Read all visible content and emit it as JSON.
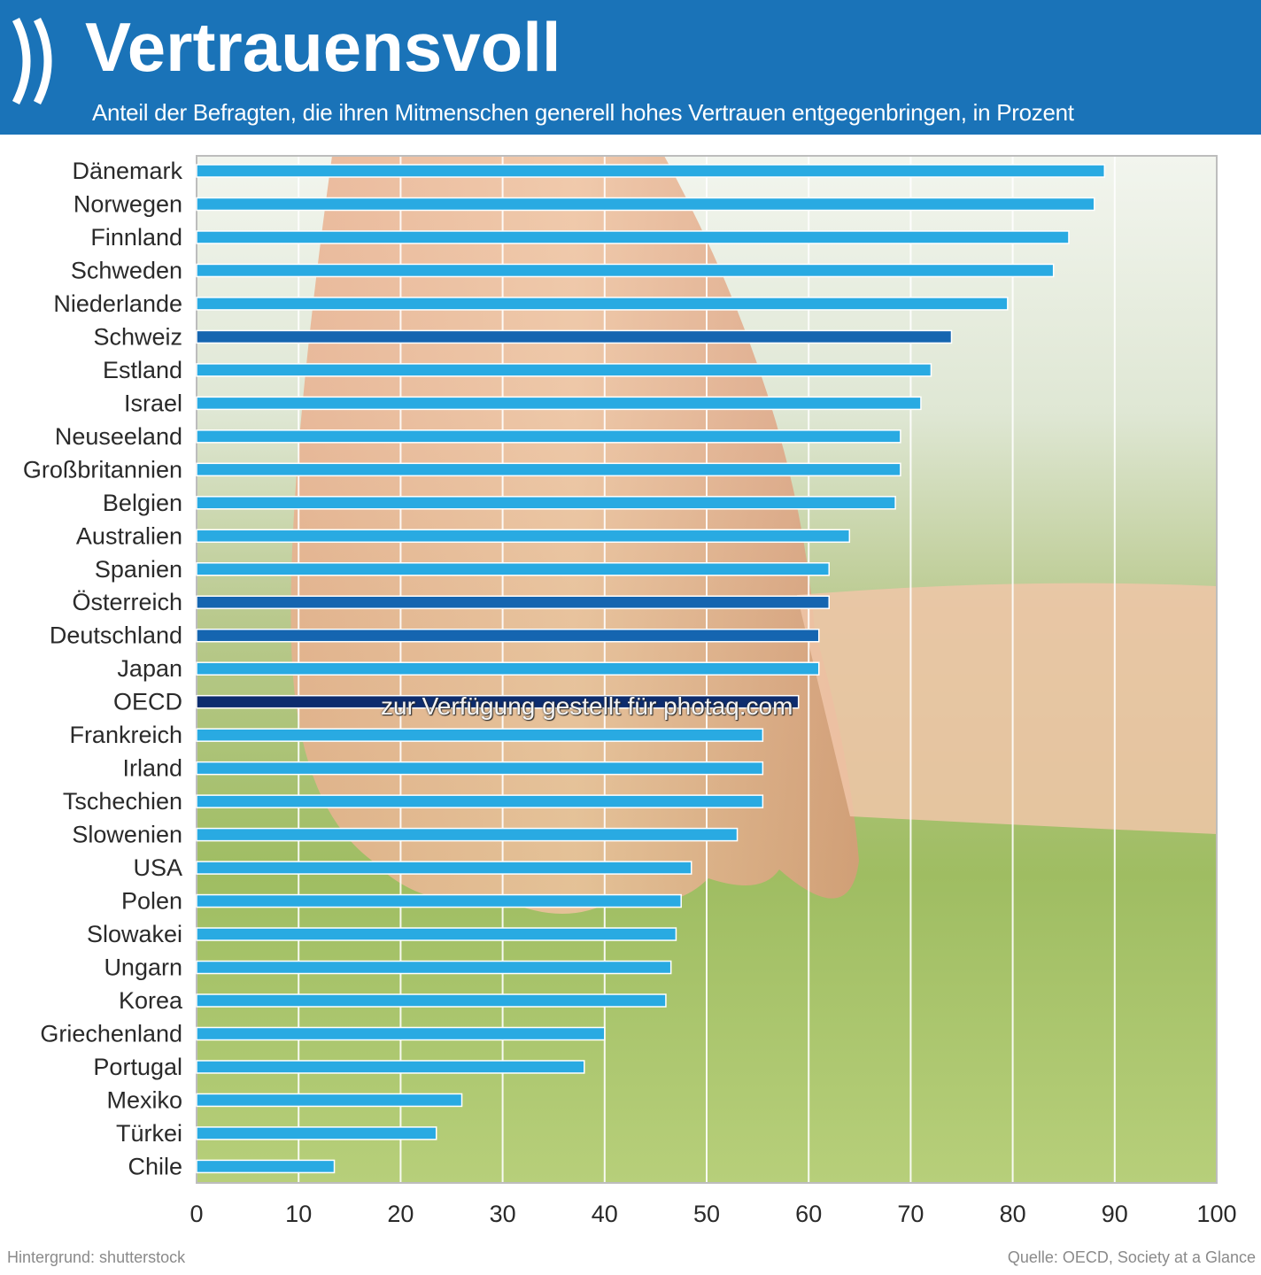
{
  "header": {
    "title": "Vertrauensvoll",
    "subtitle": "Anteil der Befragten, die ihren Mitmenschen generell hohes Vertrauen entgegenbringen, in Prozent"
  },
  "footer": {
    "background_credit": "Hintergrund: shutterstock",
    "source": "Quelle: OECD, Society at a Glance"
  },
  "watermark": "zur Verfügung gestellt für photaq.com",
  "colors": {
    "header_bg": "#1a73b8",
    "bar_default": "#29aae2",
    "bar_highlight": "#1565b0",
    "bar_oecd": "#0d2c6e"
  },
  "chart_data": {
    "type": "bar",
    "orientation": "horizontal",
    "title": "Vertrauensvoll",
    "subtitle": "Anteil der Befragten, die ihren Mitmenschen generell hohes Vertrauen entgegenbringen, in Prozent",
    "xlim": [
      0,
      100
    ],
    "xticks": [
      0,
      10,
      20,
      30,
      40,
      50,
      60,
      70,
      80,
      90,
      100
    ],
    "grid": true,
    "legend": "none",
    "categories": [
      "Dänemark",
      "Norwegen",
      "Finnland",
      "Schweden",
      "Niederlande",
      "Schweiz",
      "Estland",
      "Israel",
      "Neuseeland",
      "Großbritannien",
      "Belgien",
      "Australien",
      "Spanien",
      "Österreich",
      "Deutschland",
      "Japan",
      "OECD",
      "Frankreich",
      "Irland",
      "Tschechien",
      "Slowenien",
      "USA",
      "Polen",
      "Slowakei",
      "Ungarn",
      "Korea",
      "Griechenland",
      "Portugal",
      "Mexiko",
      "Türkei",
      "Chile"
    ],
    "values": [
      89,
      88,
      85.5,
      84,
      79.5,
      74,
      72,
      71,
      69,
      69,
      68.5,
      64,
      62,
      62,
      61,
      61,
      59,
      55.5,
      55.5,
      55.5,
      53,
      48.5,
      47.5,
      47,
      46.5,
      46,
      40,
      38,
      26,
      23.5,
      13.5
    ],
    "highlight": [
      "Schweiz",
      "Österreich",
      "Deutschland",
      "OECD"
    ]
  }
}
